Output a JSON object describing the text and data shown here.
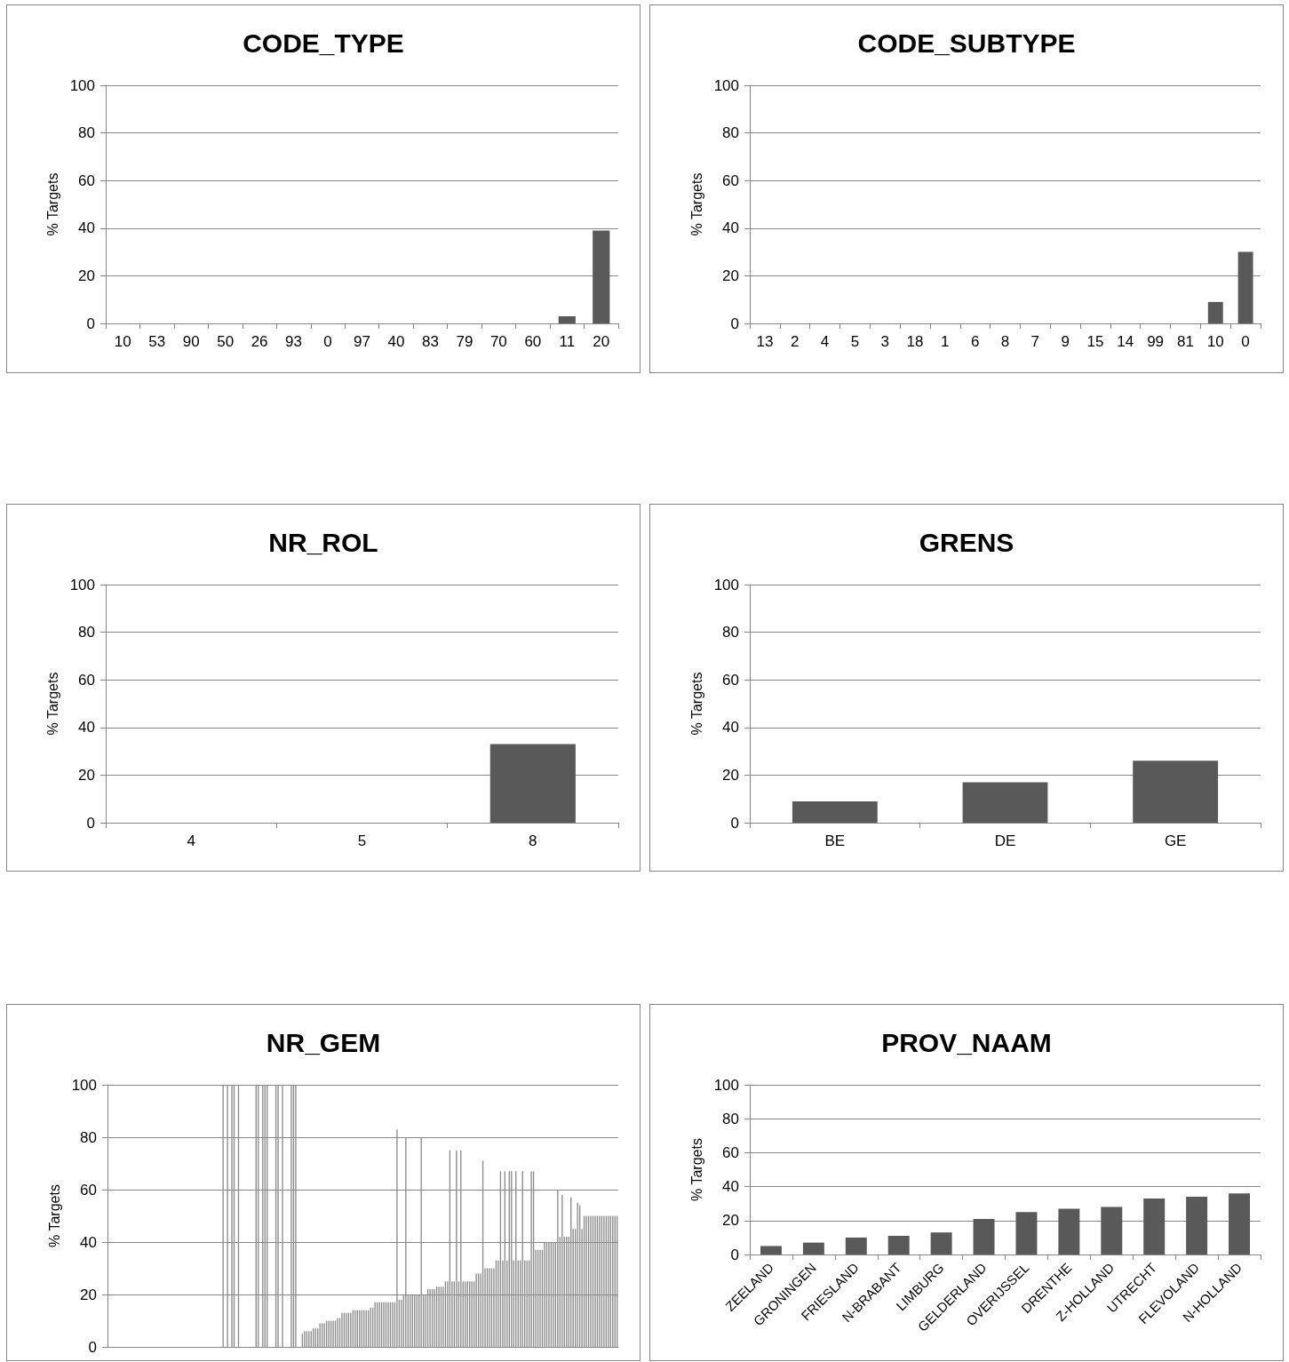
{
  "chart_data": [
    {
      "type": "bar",
      "title": "CODE_TYPE",
      "ylabel": "% Targets",
      "categories": [
        "10",
        "53",
        "90",
        "50",
        "26",
        "93",
        "0",
        "97",
        "40",
        "83",
        "79",
        "70",
        "60",
        "11",
        "20"
      ],
      "values": [
        0,
        0,
        0,
        0,
        0,
        0,
        0,
        0,
        0,
        0,
        0,
        0,
        0,
        3,
        39
      ],
      "color": "#595959",
      "ylim": [
        0,
        100
      ],
      "yticks": [
        0,
        20,
        40,
        60,
        80,
        100
      ],
      "grid": "y"
    },
    {
      "type": "bar",
      "title": "CODE_SUBTYPE",
      "ylabel": "% Targets",
      "categories": [
        "13",
        "2",
        "4",
        "5",
        "3",
        "18",
        "1",
        "6",
        "8",
        "7",
        "9",
        "15",
        "14",
        "99",
        "81",
        "10",
        "0"
      ],
      "values": [
        0,
        0,
        0,
        0,
        0,
        0,
        0,
        0,
        0,
        0,
        0,
        0,
        0,
        0,
        0,
        9,
        30
      ],
      "color": "#595959",
      "ylim": [
        0,
        100
      ],
      "yticks": [
        0,
        20,
        40,
        60,
        80,
        100
      ],
      "grid": "y"
    },
    {
      "type": "bar",
      "title": "NR_ROL",
      "ylabel": "% Targets",
      "categories": [
        "4",
        "5",
        "8"
      ],
      "values": [
        0,
        0,
        33
      ],
      "color": "#595959",
      "ylim": [
        0,
        100
      ],
      "yticks": [
        0,
        20,
        40,
        60,
        80,
        100
      ],
      "grid": "y"
    },
    {
      "type": "bar",
      "title": "GRENS",
      "ylabel": "% Targets",
      "categories": [
        "BE",
        "DE",
        "GE"
      ],
      "values": [
        9,
        17,
        26
      ],
      "color": "#595959",
      "ylim": [
        0,
        100
      ],
      "yticks": [
        0,
        20,
        40,
        60,
        80,
        100
      ],
      "grid": "y"
    },
    {
      "type": "bar",
      "title": "NR_GEM",
      "ylabel": "% Targets",
      "tick_labels": "y",
      "categories": [
        null,
        null,
        null,
        null,
        null,
        null,
        null,
        null,
        null,
        null,
        null,
        null,
        null,
        null,
        null,
        null,
        null,
        null,
        null,
        null,
        null,
        null,
        null,
        null,
        null,
        null,
        null,
        null,
        null,
        null,
        null,
        null,
        null,
        null,
        null,
        null,
        null,
        null,
        null,
        null,
        null,
        null,
        null,
        null,
        null,
        null,
        null,
        null,
        null,
        null,
        null,
        null,
        null,
        null,
        null,
        null,
        null,
        null,
        null,
        null,
        null,
        null,
        null,
        null,
        null,
        null,
        null,
        null,
        null,
        null,
        null,
        null,
        null,
        null,
        null,
        null,
        null,
        null,
        null,
        null,
        null,
        null,
        null,
        null,
        null,
        null,
        null,
        null,
        null,
        null,
        null,
        null,
        null,
        null,
        null,
        null,
        null,
        null,
        null,
        null,
        null,
        null,
        null,
        null,
        null,
        null,
        null,
        null,
        null,
        null,
        null,
        null,
        null,
        null,
        null,
        null,
        null,
        null,
        null,
        null,
        null,
        null,
        null,
        null,
        null,
        null,
        null,
        null,
        null,
        null,
        null,
        null,
        null,
        null,
        null,
        null,
        null,
        null,
        null,
        null,
        null,
        null,
        null,
        null,
        null,
        null,
        null,
        null,
        null,
        null,
        null,
        null,
        null,
        null,
        null,
        null,
        null,
        null,
        null,
        null,
        null,
        null,
        null,
        null,
        null,
        null,
        null,
        null,
        null,
        null,
        null,
        null,
        null,
        null,
        null,
        null,
        null,
        null,
        null,
        null,
        null,
        null,
        null,
        null,
        null,
        null,
        null,
        null,
        null,
        null,
        null,
        null,
        null,
        null,
        null,
        null,
        null,
        null,
        null,
        null,
        null,
        null,
        null,
        null,
        null,
        null,
        null,
        null,
        null,
        null,
        null,
        null,
        null,
        null,
        null,
        null,
        null,
        null,
        null,
        null,
        null,
        null,
        null,
        null,
        null,
        null,
        null,
        null,
        null,
        null,
        null,
        null
      ],
      "values": [
        0,
        0,
        0,
        0,
        0,
        0,
        0,
        0,
        0,
        0,
        0,
        0,
        0,
        0,
        0,
        0,
        0,
        0,
        0,
        0,
        0,
        0,
        0,
        0,
        0,
        0,
        0,
        0,
        0,
        0,
        0,
        0,
        0,
        0,
        0,
        0,
        0,
        0,
        0,
        0,
        0,
        0,
        0,
        0,
        0,
        0,
        0,
        0,
        0,
        0,
        0,
        0,
        100,
        0,
        100,
        0,
        100,
        100,
        0,
        100,
        0,
        0,
        0,
        0,
        0,
        0,
        0,
        100,
        100,
        0,
        100,
        100,
        100,
        0,
        0,
        0,
        100,
        100,
        0,
        100,
        0,
        0,
        0,
        100,
        100,
        100,
        0,
        0,
        5,
        6,
        6,
        6,
        6,
        7,
        7,
        7,
        9,
        9,
        9,
        10,
        10,
        10,
        10,
        10,
        11,
        11,
        13,
        13,
        13,
        13,
        13,
        14,
        14,
        14,
        14,
        14,
        14,
        14,
        14,
        15,
        15,
        17,
        17,
        17,
        17,
        17,
        17,
        17,
        17,
        17,
        17,
        83,
        18,
        18,
        20,
        80,
        20,
        20,
        20,
        20,
        20,
        20,
        80,
        20,
        20,
        22,
        22,
        22,
        22,
        23,
        23,
        23,
        23,
        25,
        25,
        75,
        25,
        25,
        75,
        25,
        75,
        25,
        25,
        25,
        25,
        25,
        25,
        28,
        28,
        28,
        71,
        30,
        30,
        30,
        30,
        30,
        33,
        33,
        67,
        33,
        67,
        33,
        67,
        67,
        33,
        67,
        33,
        33,
        67,
        33,
        33,
        33,
        67,
        67,
        37,
        37,
        37,
        37,
        40,
        40,
        40,
        40,
        40,
        40,
        60,
        42,
        58,
        42,
        42,
        42,
        57,
        45,
        45,
        55,
        54,
        45,
        50,
        50,
        50,
        50,
        50,
        50,
        50,
        50,
        50,
        50,
        50,
        50,
        50,
        50,
        50,
        50
      ],
      "color": "#8c8c8c",
      "ylim": [
        0,
        100
      ],
      "yticks": [
        0,
        20,
        40,
        60,
        80,
        100
      ],
      "grid": "y"
    },
    {
      "type": "bar",
      "title": "PROV_NAAM",
      "ylabel": "% Targets",
      "categories": [
        "ZEELAND",
        "GRONINGEN",
        "FRIESLAND",
        "N-BRABANT",
        "LIMBURG",
        "GELDERLAND",
        "OVERIJSSEL",
        "DRENTHE",
        "Z-HOLLAND",
        "UTRECHT",
        "FLEVOLAND",
        "N-HOLLAND"
      ],
      "values": [
        5,
        7,
        10,
        11,
        13,
        21,
        25,
        27,
        28,
        33,
        34,
        36
      ],
      "color": "#595959",
      "ylim": [
        0,
        100
      ],
      "yticks": [
        0,
        20,
        40,
        60,
        80,
        100
      ],
      "grid": "y"
    }
  ]
}
